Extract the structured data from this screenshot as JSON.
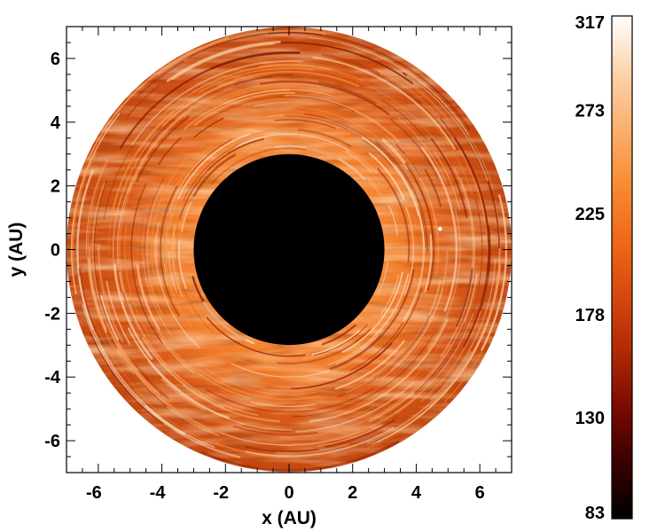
{
  "figure": {
    "xlabel": "x (AU)",
    "ylabel": "y (AU)",
    "xlim": [
      -7,
      7
    ],
    "ylim": [
      -7,
      7
    ],
    "x_ticks": [
      -6,
      -4,
      -2,
      0,
      2,
      4,
      6
    ],
    "y_ticks": [
      -6,
      -4,
      -2,
      0,
      2,
      4,
      6
    ],
    "disk_outer_radius_au": 7,
    "disk_inner_radius_au": 3,
    "inner_hole_color": "#000000",
    "colormap_colors": [
      "#000000",
      "#3a0000",
      "#7a0a00",
      "#b02a05",
      "#d8480e",
      "#ef6a18",
      "#f88c32",
      "#fbb070",
      "#fdd3ad",
      "#ffffff"
    ]
  },
  "colorbar": {
    "min": 83,
    "max": 317,
    "tick_labels": [
      "317",
      "273",
      "225",
      "178",
      "130",
      "83"
    ],
    "tick_values": [
      317,
      273,
      225,
      178,
      130,
      83
    ]
  }
}
